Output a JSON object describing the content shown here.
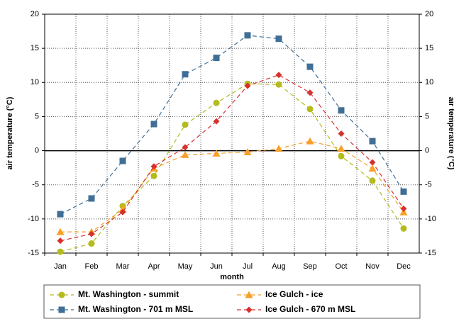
{
  "chart_data": {
    "type": "line",
    "x_label": "month",
    "y_label": "air temperature (°C)",
    "y2_label": "air temperature (°C)",
    "categories": [
      "Jan",
      "Feb",
      "Mar",
      "Apr",
      "May",
      "Jun",
      "Jul",
      "Aug",
      "Sep",
      "Oct",
      "Nov",
      "Dec"
    ],
    "ylim": [
      -15,
      20
    ],
    "yticks": [
      -15,
      -10,
      -5,
      0,
      5,
      10,
      15,
      20
    ],
    "y2lim": [
      -15,
      20
    ],
    "y2ticks": [
      -15,
      -10,
      -5,
      0,
      5,
      10,
      15,
      20
    ],
    "grid": true,
    "series": [
      {
        "name": "Mt. Washington - summit",
        "color": "#b4bb1c",
        "marker": "circle",
        "values": [
          -14.8,
          -13.6,
          -8.1,
          -3.7,
          3.8,
          7.0,
          9.8,
          9.7,
          6.1,
          -0.8,
          -4.4,
          -11.4
        ]
      },
      {
        "name": "Ice Gulch - ice",
        "color": "#f7a02a",
        "marker": "triangle",
        "values": [
          -11.9,
          -11.9,
          -8.6,
          -2.6,
          -0.6,
          -0.4,
          -0.2,
          0.3,
          1.4,
          0.3,
          -2.6,
          -9.0
        ]
      },
      {
        "name": "Mt. Washington - 701 m MSL",
        "color": "#3f6f96",
        "marker": "square",
        "values": [
          -9.3,
          -7.0,
          -1.5,
          3.9,
          11.2,
          13.6,
          16.9,
          16.4,
          12.3,
          5.9,
          1.4,
          -6.0
        ]
      },
      {
        "name": "Ice Gulch - 670 m MSL",
        "color": "#d6312e",
        "marker": "diamond",
        "values": [
          -13.2,
          -12.2,
          -9.0,
          -2.3,
          0.5,
          4.3,
          9.5,
          11.1,
          8.5,
          2.5,
          -1.7,
          -8.5
        ]
      }
    ]
  }
}
